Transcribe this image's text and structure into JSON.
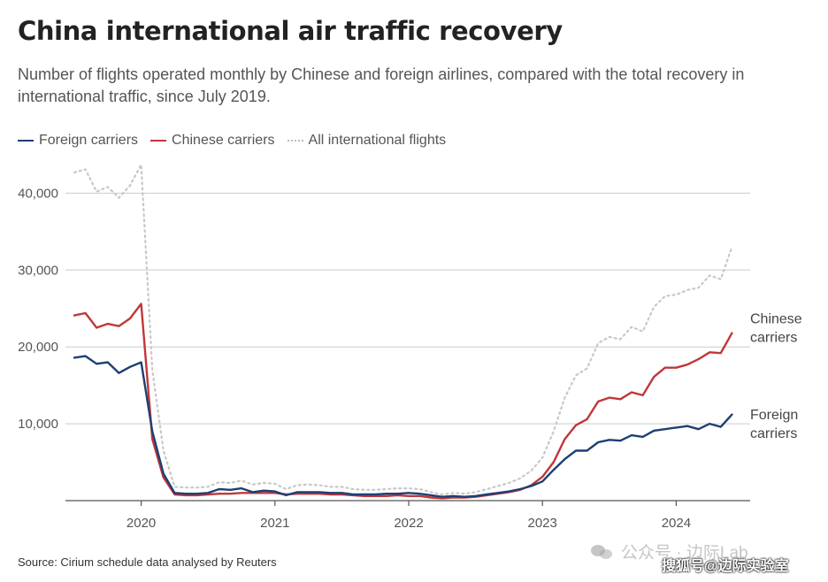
{
  "header": {
    "title": "China international air traffic recovery",
    "subtitle": "Number of flights operated monthly by Chinese and foreign airlines, compared with the total recovery in international traffic, since July 2019."
  },
  "legend": {
    "foreign": "Foreign carriers",
    "chinese": "Chinese carriers",
    "all": "All international flights"
  },
  "colors": {
    "foreign": "#1d3f73",
    "chinese": "#c0373a",
    "all": "#c8c8c8",
    "grid": "#cccccc",
    "axis": "#555555"
  },
  "footer": {
    "source": "Source: Cirium schedule data analysed by Reuters",
    "watermark": "公众号 · 边际Lab",
    "sohu": "搜狐号@边际实验室"
  },
  "chart_data": {
    "type": "line",
    "title": "China international air traffic recovery",
    "xlabel": "",
    "ylabel": "",
    "ylim": [
      0,
      45000
    ],
    "yticks": [
      10000,
      20000,
      30000,
      40000
    ],
    "ytick_labels": [
      "10,000",
      "20,000",
      "30,000",
      "40,000"
    ],
    "xticks": [
      {
        "index": 6,
        "label": "2020"
      },
      {
        "index": 18,
        "label": "2021"
      },
      {
        "index": 30,
        "label": "2022"
      },
      {
        "index": 42,
        "label": "2023"
      },
      {
        "index": 54,
        "label": "2024"
      }
    ],
    "x_start": "2019-07",
    "end_labels": {
      "chinese": "Chinese\ncarriers",
      "foreign": "Foreign\ncarriers"
    },
    "series": [
      {
        "name": "Foreign carriers",
        "key": "foreign",
        "values": [
          18600,
          18800,
          17800,
          18000,
          16600,
          17400,
          18000,
          9000,
          3500,
          1000,
          900,
          900,
          1000,
          1500,
          1400,
          1600,
          1100,
          1300,
          1200,
          700,
          1100,
          1100,
          1100,
          1000,
          1000,
          800,
          800,
          800,
          900,
          900,
          1000,
          900,
          700,
          500,
          600,
          500,
          600,
          800,
          1000,
          1200,
          1500,
          1900,
          2500,
          4000,
          5400,
          6500,
          6500,
          7600,
          7900,
          7800,
          8500,
          8300,
          9100,
          9300,
          9500,
          9700,
          9300,
          10000,
          9600,
          11200
        ]
      },
      {
        "name": "Chinese carriers",
        "key": "chinese",
        "values": [
          24100,
          24400,
          22500,
          23000,
          22700,
          23700,
          25600,
          8000,
          3000,
          800,
          700,
          700,
          800,
          900,
          900,
          1000,
          1000,
          1000,
          1000,
          800,
          900,
          900,
          900,
          800,
          800,
          700,
          600,
          600,
          600,
          700,
          600,
          600,
          400,
          300,
          400,
          400,
          500,
          700,
          900,
          1100,
          1400,
          2000,
          3100,
          5000,
          8000,
          9800,
          10600,
          12900,
          13400,
          13200,
          14100,
          13700,
          16100,
          17300,
          17300,
          17700,
          18400,
          19300,
          19200,
          21800
        ]
      },
      {
        "name": "All international flights",
        "key": "all",
        "values": [
          42700,
          43100,
          40200,
          40800,
          39400,
          41000,
          43700,
          17000,
          6500,
          1800,
          1700,
          1700,
          1800,
          2400,
          2300,
          2600,
          2100,
          2300,
          2200,
          1500,
          2000,
          2100,
          2000,
          1800,
          1800,
          1500,
          1400,
          1400,
          1500,
          1600,
          1600,
          1500,
          1100,
          800,
          1000,
          900,
          1100,
          1500,
          1900,
          2300,
          2900,
          3900,
          5600,
          9000,
          13400,
          16300,
          17200,
          20500,
          21300,
          21000,
          22600,
          22000,
          25200,
          26600,
          26800,
          27400,
          27700,
          29300,
          28800,
          33000
        ]
      }
    ]
  }
}
